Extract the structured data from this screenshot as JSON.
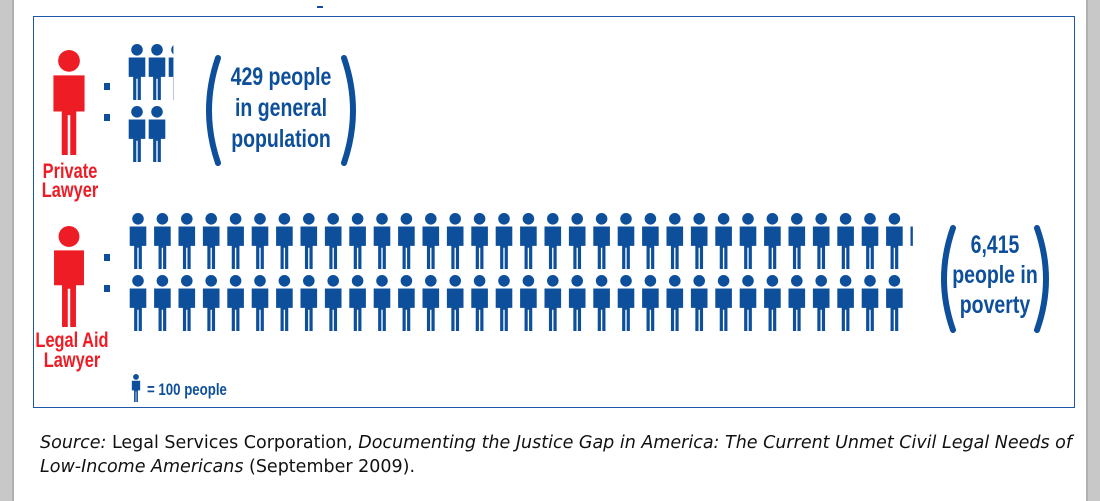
{
  "colors": {
    "red": "#ee1c25",
    "blue": "#0d4f9a"
  },
  "chart_data": {
    "type": "pictograph",
    "unit_label": "= 100 people",
    "people_per_icon": 100,
    "rows": [
      {
        "label_line1": "Private",
        "label_line2": "Lawyer",
        "icon_color": "red",
        "ratio_people": 429,
        "text_lines": [
          "429 people",
          "in general",
          "population"
        ]
      },
      {
        "label_line1": "Legal Aid",
        "label_line2": "Lawyer",
        "icon_color": "red",
        "ratio_people": 6415,
        "text_lines": [
          "6,415",
          "people in",
          "poverty"
        ]
      }
    ]
  },
  "caption": {
    "source_label": "Source:",
    "text1": " Legal Services Corporation, ",
    "title": "Documenting the Justice Gap in America: The Current Unmet Civil Legal Needs of Low-Income Americans",
    "text2": " (September 2009)."
  }
}
